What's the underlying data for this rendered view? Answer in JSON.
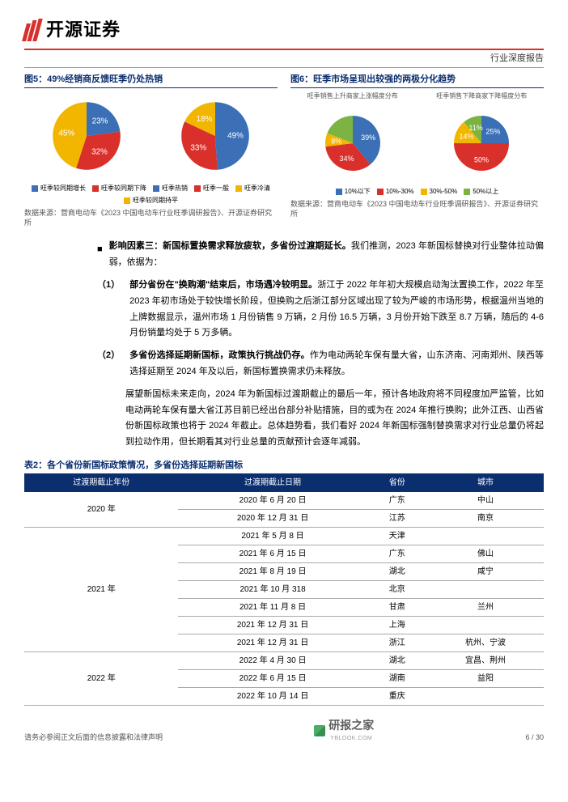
{
  "header": {
    "company": "开源证券",
    "doc_type": "行业深度报告"
  },
  "fig5": {
    "title": "图5：49%经销商反馈旺季仍处热销",
    "pie1": {
      "slices": [
        {
          "value": 23,
          "color": "#3b6fb6",
          "label": "23%"
        },
        {
          "value": 32,
          "color": "#d9302c",
          "label": "32%"
        },
        {
          "value": 45,
          "color": "#f2b600",
          "label": "45%"
        }
      ]
    },
    "pie2": {
      "slices": [
        {
          "value": 49,
          "color": "#3b6fb6",
          "label": "49%"
        },
        {
          "value": 33,
          "color": "#d9302c",
          "label": "33%"
        },
        {
          "value": 18,
          "color": "#f2b600",
          "label": "18%"
        }
      ]
    },
    "legend": [
      {
        "color": "#3b6fb6",
        "text": "旺季较同期增长"
      },
      {
        "color": "#d9302c",
        "text": "旺季较同期下降"
      },
      {
        "color": "#3b6fb6",
        "text": "旺季热销"
      },
      {
        "color": "#d9302c",
        "text": "旺季一般"
      },
      {
        "color": "#f2b600",
        "text": "旺季冷清"
      },
      {
        "color": "#f2b600",
        "text": "旺季较同期持平"
      }
    ],
    "source": "数据来源：营商电动车《2023 中国电动车行业旺季调研报告》、开源证券研究所"
  },
  "fig6": {
    "title": "图6：旺季市场呈现出较强的两极分化趋势",
    "pie1": {
      "caption": "旺季销售上升商家上涨幅度分布",
      "slices": [
        {
          "value": 39,
          "color": "#3b6fb6",
          "label": "39%"
        },
        {
          "value": 34,
          "color": "#d9302c",
          "label": "34%"
        },
        {
          "value": 8,
          "color": "#f2b600",
          "label": "8%"
        },
        {
          "value": 19,
          "color": "#7cb342",
          "label": ""
        }
      ]
    },
    "pie2": {
      "caption": "旺季销售下降商家下降幅度分布",
      "slices": [
        {
          "value": 25,
          "color": "#3b6fb6",
          "label": "25%"
        },
        {
          "value": 50,
          "color": "#d9302c",
          "label": "50%"
        },
        {
          "value": 14,
          "color": "#f2b600",
          "label": "14%"
        },
        {
          "value": 11,
          "color": "#7cb342",
          "label": "11%"
        }
      ]
    },
    "legend": [
      {
        "color": "#3b6fb6",
        "text": "10%以下"
      },
      {
        "color": "#d9302c",
        "text": "10%-30%"
      },
      {
        "color": "#f2b600",
        "text": "30%-50%"
      },
      {
        "color": "#7cb342",
        "text": "50%以上"
      }
    ],
    "source": "数据来源：营商电动车《2023 中国电动车行业旺季调研报告》、开源证券研究所"
  },
  "body": {
    "bullet": "影响因素三：新国标置换需求释放疲软，多省份过渡期延长。",
    "bullet_tail": "我们推测，2023 年新国标替换对行业整体拉动偏弱，依据为：",
    "p1_num": "（1）",
    "p1_bold": "部分省份在\"换购潮\"结束后，市场遇冷较明显。",
    "p1_text": "浙江于 2022 年年初大规模启动淘汰置换工作，2022 年至 2023 年初市场处于较快增长阶段，但换购之后浙江部分区域出现了较为严峻的市场形势，根据温州当地的上牌数据显示，温州市场 1 月份销售 9 万辆，2 月份 16.5 万辆，3 月份开始下跌至 8.7 万辆，随后的 4-6 月份销量均处于 5 万多辆。",
    "p2_num": "（2）",
    "p2_bold": "多省份选择延期新国标，政策执行挑战仍存。",
    "p2_text": "作为电动两轮车保有量大省，山东济南、河南郑州、陕西等选择延期至 2024 年及以后，新国标置换需求仍未释放。",
    "p3_bold": "展望新国标未来走向，",
    "p3_text": "2024 年为新国标过渡期截止的最后一年，预计各地政府将不同程度加严监管，比如电动两轮车保有量大省江苏目前已经出台部分补贴措施，目的或为在 2024 年推行换购；此外江西、山西省份新国标政策也将于 2024 年截止。总体趋势看，我们看好 2024 年新国标强制替换需求对行业总量仍将起到拉动作用，但长期看其对行业总量的贡献预计会逐年减弱。"
  },
  "table": {
    "title": "表2：各个省份新国标政策情况，多省份选择延期新国标",
    "columns": [
      "过渡期截止年份",
      "过渡期截止日期",
      "省份",
      "城市"
    ],
    "groups": [
      {
        "year": "2020 年",
        "rows": [
          {
            "date": "2020 年 6 月 20 日",
            "prov": "广东",
            "city": "中山"
          },
          {
            "date": "2020 年 12 月 31 日",
            "prov": "江苏",
            "city": "南京"
          }
        ]
      },
      {
        "year": "2021 年",
        "rows": [
          {
            "date": "2021 年 5 月 8 日",
            "prov": "天津",
            "city": ""
          },
          {
            "date": "2021 年 6 月 15 日",
            "prov": "广东",
            "city": "佛山"
          },
          {
            "date": "2021 年 8 月 19 日",
            "prov": "湖北",
            "city": "咸宁"
          },
          {
            "date": "2021 年 10 月 318",
            "prov": "北京",
            "city": ""
          },
          {
            "date": "2021 年 11 月 8 日",
            "prov": "甘肃",
            "city": "兰州"
          },
          {
            "date": "2021 年 12 月 31 日",
            "prov": "上海",
            "city": ""
          },
          {
            "date": "2021 年 12 月 31 日",
            "prov": "浙江",
            "city": "杭州、宁波"
          }
        ]
      },
      {
        "year": "2022 年",
        "rows": [
          {
            "date": "2022 年 4 月 30 日",
            "prov": "湖北",
            "city": "宜昌、荆州"
          },
          {
            "date": "2022 年 6 月 15 日",
            "prov": "湖南",
            "city": "益阳"
          },
          {
            "date": "2022 年 10 月 14 日",
            "prov": "重庆",
            "city": ""
          }
        ]
      }
    ]
  },
  "footer": {
    "disclaimer": "请务必参阅正文后面的信息披露和法律声明",
    "page": "6 / 30",
    "watermark": "研报之家",
    "watermark_sub": "YBLOOK.COM"
  }
}
